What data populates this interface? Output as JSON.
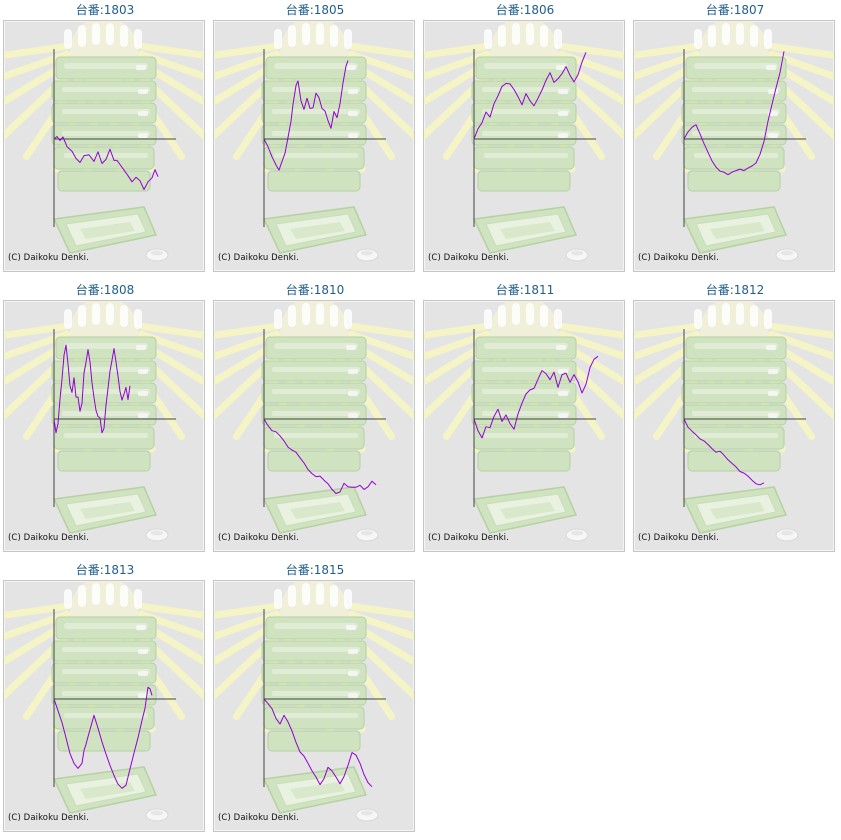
{
  "copyright": "(C) Daikoku Denki.",
  "line_color": "#9400d3",
  "title_color": "#1f5e8c",
  "machines": [
    {
      "title": "台番:1803",
      "chart_data": {
        "type": "line",
        "points": [
          [
            0,
            0
          ],
          [
            3,
            0.5
          ],
          [
            6,
            -0.3
          ],
          [
            9,
            0.4
          ],
          [
            13,
            -1.5
          ],
          [
            18,
            -2.4
          ],
          [
            22,
            -3.8
          ],
          [
            26,
            -4.6
          ],
          [
            30,
            -3.3
          ],
          [
            35,
            -3.1
          ],
          [
            40,
            -4.4
          ],
          [
            44,
            -2.5
          ],
          [
            48,
            -4.8
          ],
          [
            52,
            -4.0
          ],
          [
            56,
            -2.0
          ],
          [
            60,
            -4.2
          ],
          [
            63,
            -4.2
          ],
          [
            66,
            -5.0
          ],
          [
            70,
            -6.1
          ],
          [
            74,
            -7.2
          ],
          [
            78,
            -8.4
          ],
          [
            82,
            -7.5
          ],
          [
            86,
            -8.2
          ],
          [
            90,
            -9.9
          ],
          [
            94,
            -8.4
          ],
          [
            98,
            -7.6
          ],
          [
            101,
            -6.0
          ],
          [
            104,
            -7.4
          ]
        ]
      }
    },
    {
      "title": "台番:1805",
      "chart_data": {
        "type": "line",
        "points": [
          [
            0,
            0
          ],
          [
            4,
            -1.5
          ],
          [
            8,
            -3.5
          ],
          [
            12,
            -5.1
          ],
          [
            15,
            -6.1
          ],
          [
            18,
            -4.4
          ],
          [
            21,
            -2.8
          ],
          [
            24,
            0.3
          ],
          [
            27,
            3.5
          ],
          [
            29,
            6.8
          ],
          [
            32,
            10.5
          ],
          [
            34,
            11.4
          ],
          [
            37,
            7.5
          ],
          [
            40,
            5.8
          ],
          [
            43,
            8.0
          ],
          [
            46,
            6.0
          ],
          [
            49,
            6.1
          ],
          [
            52,
            9.0
          ],
          [
            55,
            8.1
          ],
          [
            58,
            6.0
          ],
          [
            61,
            5.5
          ],
          [
            64,
            3.6
          ],
          [
            67,
            2.1
          ],
          [
            70,
            5.4
          ],
          [
            73,
            4.2
          ],
          [
            76,
            6.9
          ],
          [
            79,
            11.0
          ],
          [
            82,
            14.3
          ],
          [
            84,
            15.4
          ]
        ]
      }
    },
    {
      "title": "台番:1806",
      "chart_data": {
        "type": "line",
        "points": [
          [
            0,
            0
          ],
          [
            4,
            2.0
          ],
          [
            8,
            3.2
          ],
          [
            12,
            5.3
          ],
          [
            16,
            4.3
          ],
          [
            20,
            6.9
          ],
          [
            24,
            8.5
          ],
          [
            28,
            10.3
          ],
          [
            32,
            10.9
          ],
          [
            36,
            10.8
          ],
          [
            40,
            9.7
          ],
          [
            44,
            8.3
          ],
          [
            48,
            6.7
          ],
          [
            52,
            8.9
          ],
          [
            56,
            7.5
          ],
          [
            60,
            6.5
          ],
          [
            64,
            8.0
          ],
          [
            68,
            9.6
          ],
          [
            72,
            11.5
          ],
          [
            76,
            13.0
          ],
          [
            80,
            11.1
          ],
          [
            84,
            11.8
          ],
          [
            88,
            12.8
          ],
          [
            92,
            14.2
          ],
          [
            96,
            12.5
          ],
          [
            100,
            11.2
          ],
          [
            104,
            12.6
          ],
          [
            108,
            15.1
          ],
          [
            112,
            17.0
          ]
        ]
      }
    },
    {
      "title": "台番:1807",
      "chart_data": {
        "type": "line",
        "points": [
          [
            0,
            0
          ],
          [
            4,
            1.4
          ],
          [
            8,
            2.3
          ],
          [
            12,
            2.8
          ],
          [
            16,
            1.0
          ],
          [
            20,
            -0.9
          ],
          [
            24,
            -2.6
          ],
          [
            28,
            -4.3
          ],
          [
            32,
            -5.5
          ],
          [
            36,
            -6.3
          ],
          [
            40,
            -6.5
          ],
          [
            44,
            -7.0
          ],
          [
            48,
            -6.5
          ],
          [
            52,
            -6.2
          ],
          [
            56,
            -5.9
          ],
          [
            60,
            -6.2
          ],
          [
            64,
            -5.7
          ],
          [
            68,
            -5.3
          ],
          [
            72,
            -4.7
          ],
          [
            76,
            -3.0
          ],
          [
            80,
            -0.5
          ],
          [
            84,
            3.5
          ],
          [
            88,
            6.8
          ],
          [
            92,
            10.0
          ],
          [
            96,
            13.0
          ],
          [
            100,
            17.2
          ]
        ]
      }
    },
    {
      "title": "台番:1808",
      "chart_data": {
        "type": "line",
        "points": [
          [
            0,
            0
          ],
          [
            2,
            -2.7
          ],
          [
            4,
            -0.9
          ],
          [
            6,
            3.9
          ],
          [
            8,
            7.8
          ],
          [
            10,
            12.5
          ],
          [
            12,
            14.5
          ],
          [
            14,
            10.8
          ],
          [
            16,
            6.5
          ],
          [
            18,
            5.2
          ],
          [
            20,
            8.1
          ],
          [
            22,
            4.3
          ],
          [
            24,
            4.3
          ],
          [
            26,
            1.5
          ],
          [
            28,
            3.1
          ],
          [
            30,
            9.0
          ],
          [
            32,
            11.1
          ],
          [
            34,
            13.6
          ],
          [
            36,
            11.2
          ],
          [
            38,
            7.1
          ],
          [
            40,
            4.2
          ],
          [
            42,
            1.7
          ],
          [
            44,
            0.5
          ],
          [
            46,
            0.2
          ],
          [
            48,
            -2.7
          ],
          [
            50,
            -1.8
          ],
          [
            52,
            2.7
          ],
          [
            54,
            6.0
          ],
          [
            56,
            9.4
          ],
          [
            58,
            11.5
          ],
          [
            60,
            13.8
          ],
          [
            62,
            11.2
          ],
          [
            64,
            8.4
          ],
          [
            66,
            5.4
          ],
          [
            68,
            3.7
          ],
          [
            70,
            4.9
          ],
          [
            72,
            6.2
          ],
          [
            74,
            3.8
          ],
          [
            76,
            6.5
          ]
        ]
      }
    },
    {
      "title": "台番:1810",
      "chart_data": {
        "type": "line",
        "points": [
          [
            0,
            0
          ],
          [
            4,
            -1.3
          ],
          [
            8,
            -2.3
          ],
          [
            12,
            -2.5
          ],
          [
            16,
            -3.3
          ],
          [
            20,
            -4.3
          ],
          [
            24,
            -5.5
          ],
          [
            28,
            -6.1
          ],
          [
            32,
            -6.5
          ],
          [
            36,
            -7.6
          ],
          [
            40,
            -8.6
          ],
          [
            44,
            -9.9
          ],
          [
            48,
            -10.7
          ],
          [
            52,
            -11.3
          ],
          [
            56,
            -11.2
          ],
          [
            60,
            -12.0
          ],
          [
            64,
            -12.7
          ],
          [
            68,
            -13.8
          ],
          [
            72,
            -14.6
          ],
          [
            76,
            -14.3
          ],
          [
            80,
            -12.6
          ],
          [
            84,
            -13.3
          ],
          [
            88,
            -13.4
          ],
          [
            92,
            -13.4
          ],
          [
            96,
            -13.0
          ],
          [
            100,
            -13.8
          ],
          [
            104,
            -13.3
          ],
          [
            108,
            -12.2
          ],
          [
            112,
            -12.9
          ]
        ]
      }
    },
    {
      "title": "台番:1811",
      "chart_data": {
        "type": "line",
        "points": [
          [
            0,
            0
          ],
          [
            4,
            -2.3
          ],
          [
            8,
            -3.7
          ],
          [
            12,
            -1.5
          ],
          [
            16,
            -1.7
          ],
          [
            20,
            0.5
          ],
          [
            24,
            1.9
          ],
          [
            28,
            -0.5
          ],
          [
            32,
            0.8
          ],
          [
            36,
            -0.9
          ],
          [
            40,
            -2.0
          ],
          [
            44,
            1.0
          ],
          [
            48,
            3.1
          ],
          [
            52,
            4.9
          ],
          [
            56,
            5.7
          ],
          [
            60,
            6.0
          ],
          [
            64,
            7.8
          ],
          [
            68,
            9.5
          ],
          [
            72,
            8.9
          ],
          [
            76,
            7.7
          ],
          [
            80,
            9.2
          ],
          [
            84,
            6.2
          ],
          [
            88,
            8.7
          ],
          [
            92,
            9.0
          ],
          [
            96,
            7.2
          ],
          [
            100,
            8.7
          ],
          [
            104,
            7.3
          ],
          [
            108,
            5.1
          ],
          [
            112,
            6.8
          ],
          [
            116,
            10.1
          ],
          [
            120,
            11.7
          ],
          [
            124,
            12.3
          ]
        ]
      }
    },
    {
      "title": "台番:1812",
      "chart_data": {
        "type": "line",
        "points": [
          [
            0,
            0
          ],
          [
            4,
            -1.6
          ],
          [
            8,
            -2.4
          ],
          [
            12,
            -3.1
          ],
          [
            16,
            -3.9
          ],
          [
            20,
            -4.3
          ],
          [
            24,
            -5.0
          ],
          [
            28,
            -5.8
          ],
          [
            32,
            -6.5
          ],
          [
            36,
            -6.3
          ],
          [
            40,
            -7.1
          ],
          [
            44,
            -8.0
          ],
          [
            48,
            -8.7
          ],
          [
            52,
            -9.4
          ],
          [
            56,
            -10.3
          ],
          [
            60,
            -10.6
          ],
          [
            64,
            -11.2
          ],
          [
            68,
            -12.0
          ],
          [
            72,
            -12.7
          ],
          [
            76,
            -12.9
          ],
          [
            80,
            -12.5
          ]
        ]
      }
    },
    {
      "title": "台番:1813",
      "chart_data": {
        "type": "line",
        "points": [
          [
            0,
            0
          ],
          [
            4,
            -2.3
          ],
          [
            8,
            -4.6
          ],
          [
            12,
            -7.6
          ],
          [
            16,
            -10.7
          ],
          [
            20,
            -12.6
          ],
          [
            24,
            -13.6
          ],
          [
            28,
            -12.6
          ],
          [
            30,
            -10.1
          ],
          [
            32,
            -8.9
          ],
          [
            34,
            -7.4
          ],
          [
            36,
            -6.0
          ],
          [
            38,
            -4.6
          ],
          [
            40,
            -3.2
          ],
          [
            44,
            -5.7
          ],
          [
            48,
            -8.4
          ],
          [
            52,
            -10.8
          ],
          [
            56,
            -13.0
          ],
          [
            60,
            -15.0
          ],
          [
            64,
            -16.7
          ],
          [
            68,
            -17.5
          ],
          [
            72,
            -16.9
          ],
          [
            76,
            -13.7
          ],
          [
            80,
            -10.6
          ],
          [
            84,
            -7.6
          ],
          [
            88,
            -4.2
          ],
          [
            91,
            -1.8
          ],
          [
            94,
            2.3
          ],
          [
            96,
            2.0
          ],
          [
            98,
            0.7
          ]
        ]
      }
    },
    {
      "title": "台番:1815",
      "chart_data": {
        "type": "line",
        "points": [
          [
            0,
            0
          ],
          [
            4,
            -0.9
          ],
          [
            8,
            -1.9
          ],
          [
            12,
            -3.8
          ],
          [
            16,
            -4.9
          ],
          [
            20,
            -3.2
          ],
          [
            24,
            -4.5
          ],
          [
            28,
            -6.3
          ],
          [
            32,
            -8.5
          ],
          [
            36,
            -10.4
          ],
          [
            40,
            -11.2
          ],
          [
            44,
            -12.6
          ],
          [
            48,
            -14.1
          ],
          [
            52,
            -15.3
          ],
          [
            56,
            -16.8
          ],
          [
            60,
            -15.6
          ],
          [
            64,
            -13.4
          ],
          [
            68,
            -14.1
          ],
          [
            72,
            -15.3
          ],
          [
            76,
            -16.6
          ],
          [
            80,
            -15.2
          ],
          [
            84,
            -13.0
          ],
          [
            88,
            -10.5
          ],
          [
            92,
            -11.0
          ],
          [
            96,
            -12.6
          ],
          [
            100,
            -14.8
          ],
          [
            104,
            -16.4
          ],
          [
            108,
            -17.2
          ]
        ]
      }
    }
  ]
}
